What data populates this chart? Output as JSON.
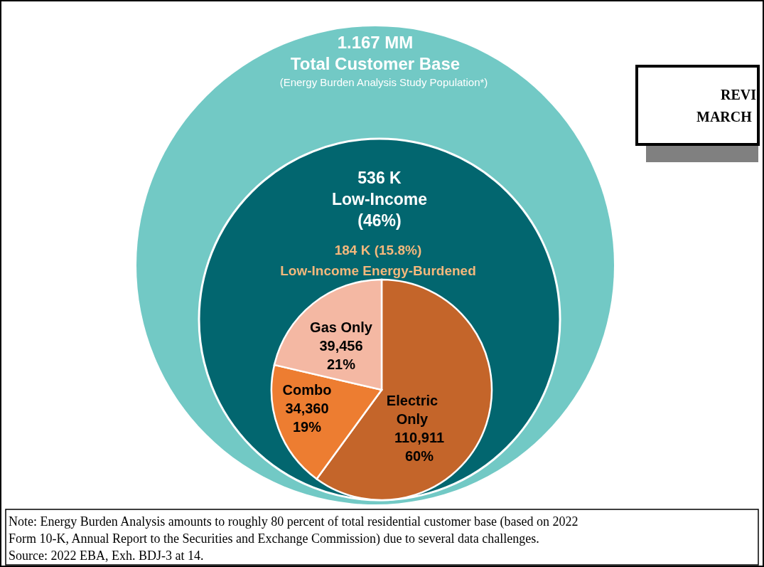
{
  "chart_data": {
    "type": "pie",
    "categories": [
      "Electric Only",
      "Combo",
      "Gas Only"
    ],
    "values": [
      110911,
      34360,
      39456
    ],
    "colors": [
      "#c4652a",
      "#ed7d31",
      "#f4b8a3"
    ],
    "value_labels": [
      "110,911 60%",
      "34,360 19%",
      "39,456 21%"
    ],
    "annotations": [
      "1.167 MM",
      "Total Customer Base",
      "(Energy Burden Analysis Study Population*)",
      "536 K",
      "Low-Income",
      "(46%)",
      "184 K (15.8%)",
      "Low-Income Energy-Burdened",
      "Note: Energy Burden Analysis amounts to roughly 80 percent of total residential customer base (based on 2022",
      "Form 10-K, Annual Report to the Securities and Exchange Commission) due to several data challenges.",
      "Source: 2022 EBA, Exh. BDJ-3 at 14.",
      "REVI",
      "MARCH"
    ]
  }
}
